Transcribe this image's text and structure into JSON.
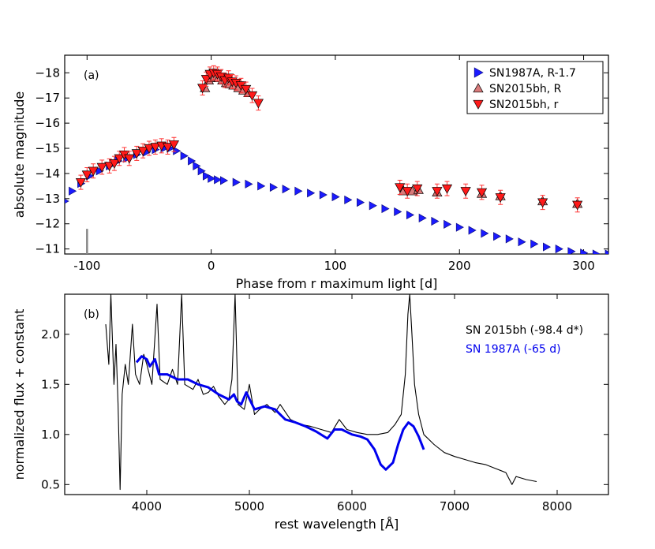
{
  "chart_data": [
    {
      "type": "scatter",
      "panel_label": "(a)",
      "xlabel": "Phase from r maximum light [d]",
      "ylabel": "absolute magnitude",
      "xlim": [
        -118,
        320
      ],
      "ylim": [
        -10.8,
        -18.7
      ],
      "y_inverted": true,
      "xticks": [
        -100,
        0,
        100,
        200,
        300
      ],
      "yticks": [
        -11,
        -12,
        -13,
        -14,
        -15,
        -16,
        -17,
        -18
      ],
      "grid": false,
      "legend_position": "top-right",
      "marker_line": {
        "x": -100,
        "y_from": -10.8,
        "y_to": -11.8,
        "color": "#888888"
      },
      "series": [
        {
          "name": "SN1987A, R-1.7",
          "marker": "triangle-right",
          "color": "#1a1aff",
          "points": [
            [
              -118,
              -12.9
            ],
            [
              -112,
              -13.3
            ],
            [
              -105,
              -13.6
            ],
            [
              -98,
              -13.9
            ],
            [
              -90,
              -14.1
            ],
            [
              -82,
              -14.3
            ],
            [
              -75,
              -14.5
            ],
            [
              -68,
              -14.6
            ],
            [
              -60,
              -14.75
            ],
            [
              -52,
              -14.85
            ],
            [
              -45,
              -14.95
            ],
            [
              -38,
              -15.0
            ],
            [
              -33,
              -15.0
            ],
            [
              -28,
              -14.9
            ],
            [
              -22,
              -14.7
            ],
            [
              -16,
              -14.5
            ],
            [
              -12,
              -14.3
            ],
            [
              -8,
              -14.1
            ],
            [
              -4,
              -13.9
            ],
            [
              0,
              -13.8
            ],
            [
              5,
              -13.75
            ],
            [
              10,
              -13.72
            ],
            [
              20,
              -13.65
            ],
            [
              30,
              -13.58
            ],
            [
              40,
              -13.5
            ],
            [
              50,
              -13.45
            ],
            [
              60,
              -13.38
            ],
            [
              70,
              -13.3
            ],
            [
              80,
              -13.22
            ],
            [
              90,
              -13.15
            ],
            [
              100,
              -13.07
            ],
            [
              110,
              -12.95
            ],
            [
              120,
              -12.85
            ],
            [
              130,
              -12.72
            ],
            [
              140,
              -12.6
            ],
            [
              150,
              -12.48
            ],
            [
              160,
              -12.35
            ],
            [
              170,
              -12.23
            ],
            [
              180,
              -12.1
            ],
            [
              190,
              -11.98
            ],
            [
              200,
              -11.86
            ],
            [
              210,
              -11.74
            ],
            [
              220,
              -11.62
            ],
            [
              230,
              -11.5
            ],
            [
              240,
              -11.4
            ],
            [
              250,
              -11.28
            ],
            [
              260,
              -11.2
            ],
            [
              270,
              -11.08
            ],
            [
              280,
              -11.0
            ],
            [
              290,
              -10.9
            ],
            [
              300,
              -10.84
            ],
            [
              310,
              -10.8
            ],
            [
              320,
              -10.8
            ]
          ]
        },
        {
          "name": "SN2015bh, R",
          "marker": "triangle-up",
          "color": "#d97a7a",
          "points": [
            [
              -5,
              -17.4
            ],
            [
              -2,
              -17.7
            ],
            [
              0,
              -17.8
            ],
            [
              3,
              -17.85
            ],
            [
              6,
              -17.8
            ],
            [
              9,
              -17.7
            ],
            [
              12,
              -17.6
            ],
            [
              15,
              -17.55
            ],
            [
              18,
              -17.5
            ],
            [
              22,
              -17.4
            ],
            [
              26,
              -17.3
            ],
            [
              30,
              -17.2
            ],
            [
              155,
              -13.3
            ],
            [
              162,
              -13.3
            ],
            [
              167,
              -13.35
            ],
            [
              182,
              -13.25
            ],
            [
              218,
              -13.2
            ],
            [
              233,
              -13.1
            ],
            [
              267,
              -12.9
            ],
            [
              295,
              -12.8
            ]
          ]
        },
        {
          "name": "SN2015bh, r",
          "marker": "triangle-down",
          "color": "#ff1a1a",
          "points": [
            [
              -105,
              -13.65
            ],
            [
              -100,
              -13.95
            ],
            [
              -95,
              -14.1
            ],
            [
              -88,
              -14.25
            ],
            [
              -82,
              -14.3
            ],
            [
              -78,
              -14.4
            ],
            [
              -74,
              -14.6
            ],
            [
              -70,
              -14.75
            ],
            [
              -66,
              -14.6
            ],
            [
              -60,
              -14.8
            ],
            [
              -55,
              -14.9
            ],
            [
              -50,
              -15.0
            ],
            [
              -45,
              -15.05
            ],
            [
              -40,
              -15.1
            ],
            [
              -35,
              -15.05
            ],
            [
              -30,
              -15.15
            ],
            [
              -7,
              -17.4
            ],
            [
              -4,
              -17.75
            ],
            [
              -1,
              -17.95
            ],
            [
              2,
              -18.0
            ],
            [
              5,
              -17.95
            ],
            [
              8,
              -17.85
            ],
            [
              11,
              -17.7
            ],
            [
              14,
              -17.8
            ],
            [
              17,
              -17.65
            ],
            [
              20,
              -17.6
            ],
            [
              24,
              -17.5
            ],
            [
              28,
              -17.35
            ],
            [
              33,
              -17.1
            ],
            [
              38,
              -16.8
            ],
            [
              152,
              -13.45
            ],
            [
              158,
              -13.3
            ],
            [
              166,
              -13.4
            ],
            [
              182,
              -13.3
            ],
            [
              190,
              -13.4
            ],
            [
              205,
              -13.3
            ],
            [
              218,
              -13.25
            ],
            [
              233,
              -13.05
            ],
            [
              267,
              -12.85
            ],
            [
              295,
              -12.75
            ]
          ]
        }
      ]
    },
    {
      "type": "line",
      "panel_label": "(b)",
      "xlabel": "rest wavelength [Å]",
      "ylabel": "normalized flux + constant",
      "xlim": [
        3200,
        8500
      ],
      "ylim": [
        0.4,
        2.4
      ],
      "xticks": [
        4000,
        5000,
        6000,
        7000,
        8000
      ],
      "yticks": [
        0.5,
        1.0,
        1.5,
        2.0
      ],
      "grid": false,
      "legend_position": "top-right",
      "series": [
        {
          "name": "SN 2015bh  (-98.4 d*)",
          "color": "#000000",
          "points": [
            [
              3600,
              2.1
            ],
            [
              3630,
              1.7
            ],
            [
              3650,
              2.4
            ],
            [
              3680,
              1.5
            ],
            [
              3700,
              1.9
            ],
            [
              3720,
              1.3
            ],
            [
              3740,
              0.45
            ],
            [
              3760,
              1.4
            ],
            [
              3790,
              1.7
            ],
            [
              3820,
              1.5
            ],
            [
              3860,
              2.1
            ],
            [
              3890,
              1.6
            ],
            [
              3930,
              1.5
            ],
            [
              3970,
              1.8
            ],
            [
              4000,
              1.7
            ],
            [
              4050,
              1.5
            ],
            [
              4100,
              2.3
            ],
            [
              4130,
              1.55
            ],
            [
              4200,
              1.5
            ],
            [
              4250,
              1.65
            ],
            [
              4300,
              1.5
            ],
            [
              4340,
              2.4
            ],
            [
              4370,
              1.5
            ],
            [
              4450,
              1.45
            ],
            [
              4500,
              1.55
            ],
            [
              4550,
              1.4
            ],
            [
              4600,
              1.42
            ],
            [
              4650,
              1.48
            ],
            [
              4700,
              1.38
            ],
            [
              4760,
              1.3
            ],
            [
              4800,
              1.35
            ],
            [
              4830,
              1.55
            ],
            [
              4861,
              2.4
            ],
            [
              4890,
              1.3
            ],
            [
              4950,
              1.25
            ],
            [
              5000,
              1.5
            ],
            [
              5050,
              1.2
            ],
            [
              5100,
              1.25
            ],
            [
              5170,
              1.3
            ],
            [
              5250,
              1.22
            ],
            [
              5300,
              1.3
            ],
            [
              5400,
              1.15
            ],
            [
              5500,
              1.1
            ],
            [
              5600,
              1.08
            ],
            [
              5700,
              1.05
            ],
            [
              5800,
              1.02
            ],
            [
              5876,
              1.15
            ],
            [
              5950,
              1.05
            ],
            [
              6050,
              1.02
            ],
            [
              6150,
              1.0
            ],
            [
              6250,
              1.0
            ],
            [
              6350,
              1.02
            ],
            [
              6420,
              1.1
            ],
            [
              6480,
              1.2
            ],
            [
              6520,
              1.6
            ],
            [
              6545,
              2.2
            ],
            [
              6563,
              2.4
            ],
            [
              6585,
              2.0
            ],
            [
              6610,
              1.5
            ],
            [
              6650,
              1.2
            ],
            [
              6700,
              1.0
            ],
            [
              6800,
              0.9
            ],
            [
              6900,
              0.82
            ],
            [
              7000,
              0.78
            ],
            [
              7100,
              0.75
            ],
            [
              7200,
              0.72
            ],
            [
              7300,
              0.7
            ],
            [
              7400,
              0.66
            ],
            [
              7500,
              0.62
            ],
            [
              7560,
              0.5
            ],
            [
              7600,
              0.58
            ],
            [
              7700,
              0.55
            ],
            [
              7800,
              0.53
            ]
          ]
        },
        {
          "name": "SN 1987A   (-65 d)",
          "color": "#0000ee",
          "points": [
            [
              3900,
              1.72
            ],
            [
              3950,
              1.78
            ],
            [
              4000,
              1.75
            ],
            [
              4030,
              1.68
            ],
            [
              4080,
              1.75
            ],
            [
              4120,
              1.6
            ],
            [
              4200,
              1.6
            ],
            [
              4300,
              1.55
            ],
            [
              4400,
              1.55
            ],
            [
              4500,
              1.5
            ],
            [
              4600,
              1.47
            ],
            [
              4700,
              1.4
            ],
            [
              4800,
              1.35
            ],
            [
              4850,
              1.4
            ],
            [
              4880,
              1.33
            ],
            [
              4920,
              1.3
            ],
            [
              4970,
              1.42
            ],
            [
              5050,
              1.25
            ],
            [
              5150,
              1.28
            ],
            [
              5250,
              1.25
            ],
            [
              5350,
              1.15
            ],
            [
              5450,
              1.12
            ],
            [
              5550,
              1.08
            ],
            [
              5650,
              1.03
            ],
            [
              5760,
              0.96
            ],
            [
              5830,
              1.05
            ],
            [
              5900,
              1.05
            ],
            [
              6000,
              1.0
            ],
            [
              6080,
              0.98
            ],
            [
              6150,
              0.95
            ],
            [
              6220,
              0.85
            ],
            [
              6280,
              0.7
            ],
            [
              6330,
              0.65
            ],
            [
              6400,
              0.72
            ],
            [
              6450,
              0.9
            ],
            [
              6500,
              1.05
            ],
            [
              6550,
              1.12
            ],
            [
              6600,
              1.08
            ],
            [
              6650,
              0.98
            ],
            [
              6700,
              0.85
            ]
          ]
        }
      ]
    }
  ]
}
